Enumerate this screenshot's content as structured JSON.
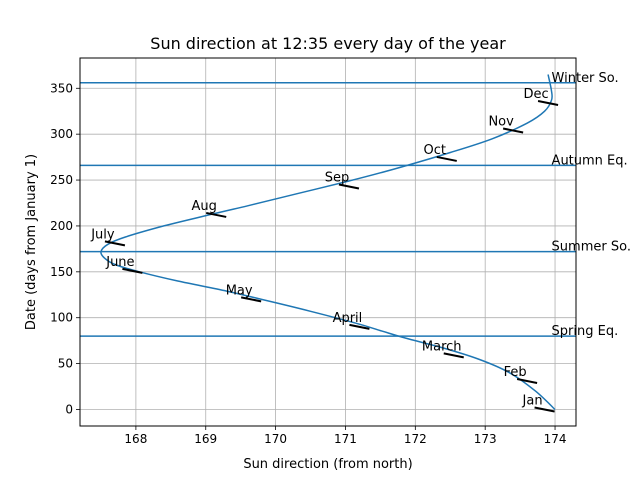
{
  "chart_data": {
    "type": "line",
    "title": "Sun direction at 12:35 every day of the year",
    "xlabel": "Sun direction (from north)",
    "ylabel": "Date (days from January 1)",
    "xlim": [
      167.2,
      174.3
    ],
    "ylim": [
      -18,
      383
    ],
    "xticks": [
      168,
      169,
      170,
      171,
      172,
      173,
      174
    ],
    "yticks": [
      0,
      50,
      100,
      150,
      200,
      250,
      300,
      350
    ],
    "grid": true,
    "colors": {
      "curve": "#1f77b4",
      "marks": "#000000"
    },
    "curve": {
      "x": [
        174.0,
        173.72,
        173.35,
        172.9,
        172.4,
        171.85,
        171.5,
        171.15,
        170.5,
        169.8,
        169.3,
        168.6,
        168.05,
        167.7,
        167.55,
        167.5,
        167.6,
        167.85,
        168.4,
        169.1,
        169.6,
        170.3,
        171.0,
        171.7,
        172.5,
        173.1,
        173.6,
        173.85,
        173.95,
        173.95,
        173.9
      ],
      "y": [
        0,
        20,
        40,
        55,
        67,
        78,
        86,
        94,
        107,
        120,
        129,
        140,
        150,
        158,
        165,
        172,
        180,
        188,
        200,
        213,
        222,
        235,
        248,
        262,
        280,
        295,
        312,
        325,
        337,
        347,
        365
      ]
    },
    "reference_lines": [
      {
        "label": "Spring Eq.",
        "y": 80
      },
      {
        "label": "Summer So.",
        "y": 172
      },
      {
        "label": "Autumn Eq.",
        "y": 266
      },
      {
        "label": "Winter So.",
        "y": 356
      }
    ],
    "months": [
      {
        "label": "Jan",
        "x": 173.85,
        "y": 0
      },
      {
        "label": "Feb",
        "x": 173.6,
        "y": 31
      },
      {
        "label": "March",
        "x": 172.55,
        "y": 59
      },
      {
        "label": "April",
        "x": 171.2,
        "y": 90
      },
      {
        "label": "May",
        "x": 169.65,
        "y": 120
      },
      {
        "label": "June",
        "x": 167.95,
        "y": 151
      },
      {
        "label": "July",
        "x": 167.7,
        "y": 181
      },
      {
        "label": "Aug",
        "x": 169.15,
        "y": 212
      },
      {
        "label": "Sep",
        "x": 171.05,
        "y": 243
      },
      {
        "label": "Oct",
        "x": 172.45,
        "y": 273
      },
      {
        "label": "Nov",
        "x": 173.4,
        "y": 304
      },
      {
        "label": "Dec",
        "x": 173.9,
        "y": 334
      }
    ]
  }
}
